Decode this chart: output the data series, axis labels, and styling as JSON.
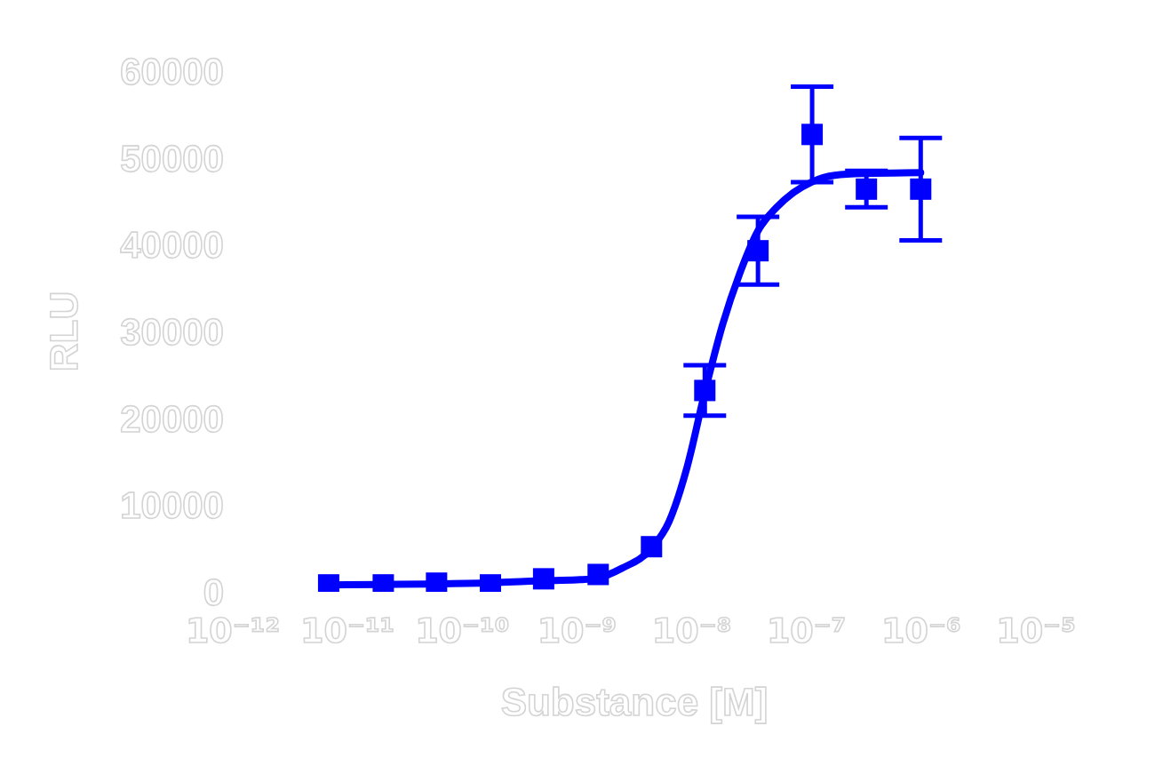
{
  "chart_data": {
    "type": "scatter",
    "xlabel": "Substance [M]",
    "ylabel": "RLU",
    "log": "x",
    "marker": "square",
    "xlim": [
      1e-12,
      1e-05
    ],
    "xticks": [
      {
        "value": 1e-12,
        "label": "10⁻¹²"
      },
      {
        "value": 1e-11,
        "label": "10⁻¹¹"
      },
      {
        "value": 1e-10,
        "label": "10⁻¹⁰"
      },
      {
        "value": 1e-09,
        "label": "10⁻⁹"
      },
      {
        "value": 1e-08,
        "label": "10⁻⁸"
      },
      {
        "value": 1e-07,
        "label": "10⁻⁷"
      },
      {
        "value": 1e-06,
        "label": "10⁻⁶"
      },
      {
        "value": 1e-05,
        "label": "10⁻⁵"
      }
    ],
    "ylim": [
      0,
      60000
    ],
    "yticks": [
      0,
      10000,
      20000,
      30000,
      40000,
      50000,
      60000
    ],
    "series": [
      {
        "type": "line",
        "color": "#0000ff",
        "marker": "none",
        "x": [
          6.85e-12,
          1.42e-10,
          5.9e-10,
          1.07e-09,
          1.53e-09,
          2.45e-09,
          4.45e-09,
          6.35e-09,
          9.08e-09,
          1.29e-08,
          1.85e-08,
          2.64e-08,
          3.78e-08,
          5.4e-08,
          7.69e-08,
          1.1e-07,
          1.77e-07,
          3.21e-07,
          9.9e-07
        ],
        "values": [
          800,
          1000,
          1300,
          1400,
          1600,
          2700,
          5000,
          8100,
          14300,
          22800,
          30700,
          36800,
          41600,
          44200,
          46000,
          47200,
          48000,
          48200,
          48300
        ]
      },
      {
        "type": "scatter",
        "color": "#0000ff",
        "x": [
          6.85e-12,
          2.05e-11,
          5.97e-11,
          1.76e-10,
          5.12e-10,
          1.53e-09,
          4.46e-09,
          1.3e-08,
          3.78e-08,
          1.12e-07,
          3.33e-07,
          9.9e-07
        ],
        "values": [
          800,
          800,
          1000,
          800,
          1500,
          2000,
          5200,
          23200,
          39300,
          52700,
          46400,
          46400
        ],
        "errors": [
          null,
          null,
          null,
          null,
          null,
          null,
          null,
          2900,
          3900,
          5500,
          2100,
          5900
        ]
      }
    ]
  }
}
